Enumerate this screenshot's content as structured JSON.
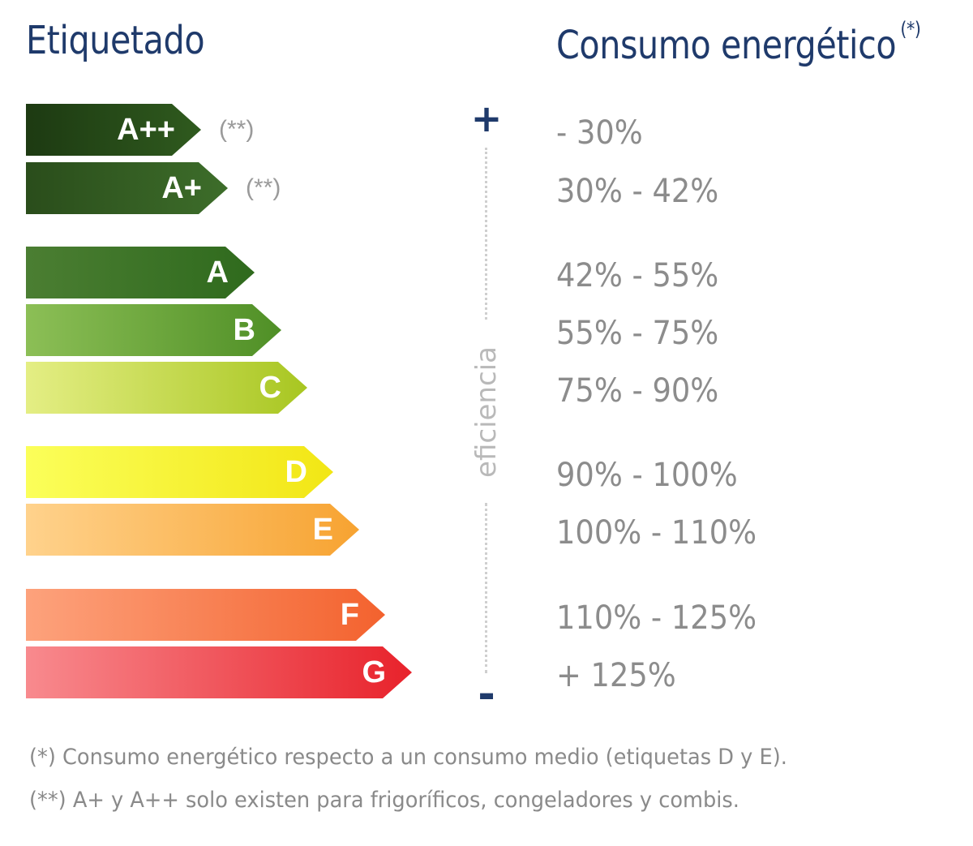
{
  "headings": {
    "left": "Etiquetado",
    "right": "Consumo energético",
    "right_marker": "(*)"
  },
  "axis": {
    "top_sign": "+",
    "bottom_sign": "-",
    "label": "eficiencia"
  },
  "classes": [
    {
      "label": "A++",
      "note": "(**)",
      "range": "- 30%",
      "color_start": "#1d3a12",
      "color_end": "#2f5a1e"
    },
    {
      "label": "A+",
      "note": "(**)",
      "range": "30% - 42%",
      "color_start": "#2a4d1b",
      "color_end": "#3d6d2a"
    },
    {
      "label": "A",
      "note": "",
      "range": "42% - 55%",
      "color_start": "#4b7e32",
      "color_end": "#2f6a1d"
    },
    {
      "label": "B",
      "note": "",
      "range": "55% - 75%",
      "color_start": "#8cbf56",
      "color_end": "#4f8f26"
    },
    {
      "label": "C",
      "note": "",
      "range": "75% - 90%",
      "color_start": "#e4ee84",
      "color_end": "#a8c621"
    },
    {
      "label": "D",
      "note": "",
      "range": "90% - 100%",
      "color_start": "#fbff5a",
      "color_end": "#f2e614"
    },
    {
      "label": "E",
      "note": "",
      "range": "100% - 110%",
      "color_start": "#ffd28c",
      "color_end": "#f7a331"
    },
    {
      "label": "F",
      "note": "",
      "range": "110% - 125%",
      "color_start": "#fda27c",
      "color_end": "#f3622e"
    },
    {
      "label": "G",
      "note": "",
      "range": "+ 125%",
      "color_start": "#f88a8e",
      "color_end": "#e8222b"
    }
  ],
  "footnotes": [
    "(*) Consumo energético respecto a un consumo medio (etiquetas D y E).",
    "(**) A+ y A++ solo existen para frigoríficos, congeladores y combis."
  ]
}
